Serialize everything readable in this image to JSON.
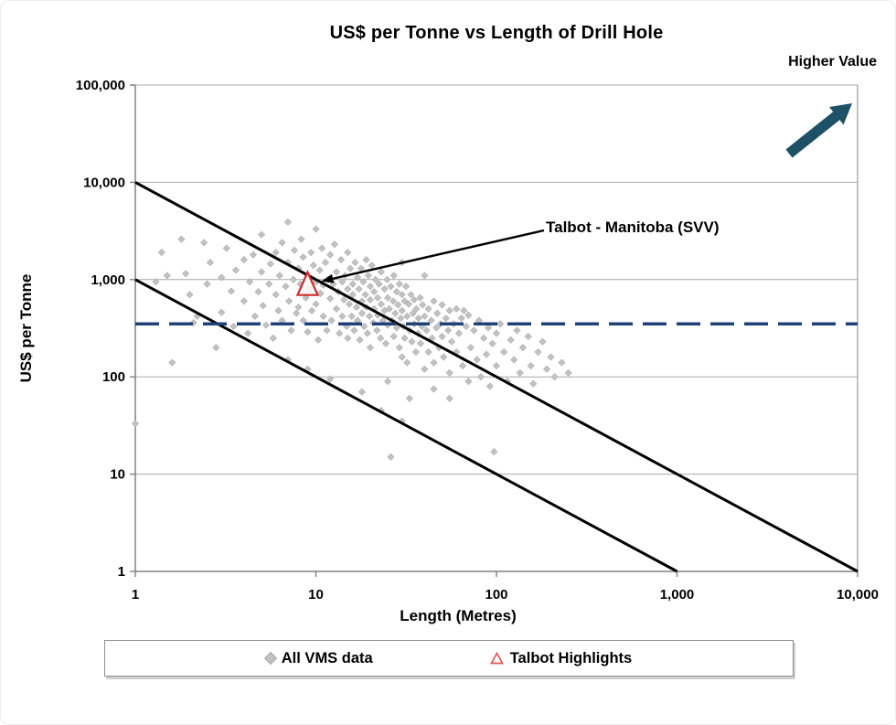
{
  "chart": {
    "title": "US$ per Tonne vs Length of Drill Hole",
    "higher_value_label": "Higher Value",
    "xlabel": "Length (Metres)",
    "ylabel": "US$ per Tonne"
  },
  "legend": {
    "items": [
      {
        "label": "All VMS data",
        "marker": "gray-diamond"
      },
      {
        "label": "Talbot Highlights",
        "marker": "red-open-triangle"
      }
    ]
  },
  "chart_data": {
    "type": "scatter",
    "title": "US$ per Tonne vs Length of Drill Hole",
    "xlabel": "Length (Metres)",
    "ylabel": "US$ per Tonne",
    "x_scale": "log",
    "y_scale": "log",
    "xlim": [
      1,
      10000
    ],
    "ylim": [
      1,
      100000
    ],
    "x_ticks": [
      "1",
      "10",
      "100",
      "1,000",
      "10,000"
    ],
    "x_tick_values": [
      1,
      10,
      100,
      1000,
      10000
    ],
    "y_ticks": [
      "1",
      "10",
      "100",
      "1,000",
      "10,000",
      "100,000"
    ],
    "y_tick_values": [
      1,
      10,
      100,
      1000,
      10000,
      100000
    ],
    "grid": "horizontal-only",
    "legend_position": "bottom",
    "annotation": {
      "text": "Talbot - Manitoba (SVV)",
      "target": [
        9,
        900
      ]
    },
    "colors": {
      "vms_point": "#C2C2C2",
      "vms_point_edge": "#ABABAB",
      "talbot_red": "#CE2B2B",
      "dashed_line": "#1F4177",
      "envelope_line": "#000000",
      "higher_value_arrow": "#1F5166",
      "gridline": "#A8A8A8",
      "axis_line": "#808080"
    },
    "reference_lines": [
      {
        "name": "upper-envelope",
        "type": "diagonal",
        "from": [
          1,
          10000
        ],
        "to": [
          10000,
          1
        ],
        "style": "solid"
      },
      {
        "name": "lower-envelope",
        "type": "diagonal",
        "from": [
          1,
          1000
        ],
        "to": [
          1000,
          1
        ],
        "style": "solid"
      },
      {
        "name": "median-value",
        "type": "horizontal",
        "y": 350,
        "from_x": 1,
        "to_x": 10000,
        "style": "dashed"
      }
    ],
    "series": [
      {
        "name": "All VMS data",
        "marker": "diamond",
        "points": [
          [
            1,
            33
          ],
          [
            1.3,
            950
          ],
          [
            1.4,
            1900
          ],
          [
            1.5,
            1100
          ],
          [
            1.6,
            140
          ],
          [
            1.8,
            2600
          ],
          [
            1.9,
            1150
          ],
          [
            2,
            700
          ],
          [
            2.1,
            360
          ],
          [
            2.2,
            420
          ],
          [
            2.4,
            2400
          ],
          [
            2.5,
            900
          ],
          [
            2.6,
            1500
          ],
          [
            2.8,
            200
          ],
          [
            3,
            1050
          ],
          [
            3,
            460
          ],
          [
            3.2,
            2100
          ],
          [
            3.4,
            760
          ],
          [
            3.5,
            330
          ],
          [
            3.6,
            1250
          ],
          [
            4,
            1600
          ],
          [
            4,
            600
          ],
          [
            4.2,
            280
          ],
          [
            4.3,
            950
          ],
          [
            4.5,
            1800
          ],
          [
            4.6,
            420
          ],
          [
            4.8,
            750
          ],
          [
            5,
            2900
          ],
          [
            5,
            1200
          ],
          [
            5.1,
            540
          ],
          [
            5.3,
            340
          ],
          [
            5.5,
            900
          ],
          [
            5.6,
            1450
          ],
          [
            5.8,
            250
          ],
          [
            6,
            1900
          ],
          [
            6,
            700
          ],
          [
            6.2,
            480
          ],
          [
            6.3,
            1100
          ],
          [
            6.5,
            2400
          ],
          [
            6.5,
            380
          ],
          [
            6.8,
            850
          ],
          [
            7,
            3900
          ],
          [
            7,
            1500
          ],
          [
            7.1,
            600
          ],
          [
            7.3,
            300
          ],
          [
            7.5,
            1000
          ],
          [
            7.6,
            2000
          ],
          [
            7.8,
            450
          ],
          [
            7,
            150
          ],
          [
            8,
            1300
          ],
          [
            8,
            520
          ],
          [
            8.2,
            900
          ],
          [
            8.3,
            2600
          ],
          [
            8.5,
            380
          ],
          [
            8.5,
            1700
          ],
          [
            8.8,
            650
          ],
          [
            9,
            1100
          ],
          [
            9,
            290
          ],
          [
            9.2,
            800
          ],
          [
            9.4,
            1900
          ],
          [
            9.5,
            480
          ],
          [
            9.7,
            1400
          ],
          [
            9,
            120
          ],
          [
            10,
            3300
          ],
          [
            10,
            950
          ],
          [
            10,
            560
          ],
          [
            10.3,
            240
          ],
          [
            10.5,
            1250
          ],
          [
            10.6,
            720
          ],
          [
            10.8,
            2100
          ],
          [
            11,
            880
          ],
          [
            11,
            420
          ],
          [
            11.3,
            1500
          ],
          [
            11.5,
            300
          ],
          [
            11.7,
            1000
          ],
          [
            12,
            1800
          ],
          [
            12,
            640
          ],
          [
            12.2,
            380
          ],
          [
            12.5,
            900
          ],
          [
            12.7,
            2300
          ],
          [
            12,
            95
          ],
          [
            13,
            1200
          ],
          [
            13,
            500
          ],
          [
            13.3,
            750
          ],
          [
            13.5,
            280
          ],
          [
            13.8,
            1600
          ],
          [
            14,
            950
          ],
          [
            14,
            420
          ],
          [
            14.3,
            620
          ],
          [
            14.5,
            1100
          ],
          [
            14.8,
            330
          ],
          [
            15,
            1900
          ],
          [
            15,
            800
          ],
          [
            15,
            250
          ],
          [
            15.3,
            560
          ],
          [
            15.5,
            1300
          ],
          [
            15.8,
            420
          ],
          [
            16,
            900
          ],
          [
            16,
            700
          ],
          [
            16.3,
            300
          ],
          [
            16.5,
            1500
          ],
          [
            16.8,
            520
          ],
          [
            17,
            1050
          ],
          [
            17,
            380
          ],
          [
            17.3,
            800
          ],
          [
            17.5,
            240
          ],
          [
            17.8,
            1300
          ],
          [
            18,
            600
          ],
          [
            18,
            450
          ],
          [
            18.3,
            950
          ],
          [
            18.5,
            330
          ],
          [
            18.8,
            700
          ],
          [
            18,
            70
          ],
          [
            19,
            1600
          ],
          [
            19,
            520
          ],
          [
            19.3,
            280
          ],
          [
            19.5,
            1100
          ],
          [
            19.8,
            420
          ],
          [
            20,
            850
          ],
          [
            20,
            620
          ],
          [
            20,
            200
          ],
          [
            20.4,
            1400
          ],
          [
            20.8,
            360
          ],
          [
            21,
            750
          ],
          [
            21,
            500
          ],
          [
            21.4,
            1000
          ],
          [
            21.8,
            300
          ],
          [
            22,
            650
          ],
          [
            22,
            430
          ],
          [
            22.4,
            900
          ],
          [
            22.8,
            250
          ],
          [
            23,
            1200
          ],
          [
            23,
            560
          ],
          [
            23.5,
            380
          ],
          [
            23,
            45
          ],
          [
            24,
            800
          ],
          [
            24,
            480
          ],
          [
            24.4,
            220
          ],
          [
            24.8,
            1000
          ],
          [
            25,
            650
          ],
          [
            25,
            340
          ],
          [
            25,
            90
          ],
          [
            25.5,
            500
          ],
          [
            26,
            850
          ],
          [
            26,
            15
          ],
          [
            26.4,
            380
          ],
          [
            26.8,
            600
          ],
          [
            27,
            1100
          ],
          [
            27,
            260
          ],
          [
            27.5,
            450
          ],
          [
            28,
            750
          ],
          [
            28,
            320
          ],
          [
            28.5,
            550
          ],
          [
            29,
            900
          ],
          [
            29,
            200
          ],
          [
            29.5,
            400
          ],
          [
            30,
            700
          ],
          [
            30,
            480
          ],
          [
            30,
            160
          ],
          [
            30,
            35
          ],
          [
            30,
            1500
          ],
          [
            30.6,
            330
          ],
          [
            31,
            600
          ],
          [
            31,
            250
          ],
          [
            31.6,
            850
          ],
          [
            32,
            420
          ],
          [
            32,
            140
          ],
          [
            32.7,
            560
          ],
          [
            33,
            300
          ],
          [
            33,
            60
          ],
          [
            33.6,
            700
          ],
          [
            34,
            230
          ],
          [
            34.5,
            450
          ],
          [
            35,
            620
          ],
          [
            35,
            350
          ],
          [
            35.8,
            180
          ],
          [
            36,
            500
          ],
          [
            36.8,
            280
          ],
          [
            37,
            400
          ],
          [
            37.8,
            650
          ],
          [
            38,
            220
          ],
          [
            38.7,
            330
          ],
          [
            39,
            550
          ],
          [
            40,
            420
          ],
          [
            40,
            120
          ],
          [
            40,
            1100
          ],
          [
            41,
            300
          ],
          [
            42,
            500
          ],
          [
            42,
            180
          ],
          [
            43.5,
            380
          ],
          [
            44,
            250
          ],
          [
            45,
            600
          ],
          [
            45,
            140
          ],
          [
            45,
            75
          ],
          [
            46.5,
            320
          ],
          [
            47,
            450
          ],
          [
            48,
            200
          ],
          [
            49,
            350
          ],
          [
            50,
            550
          ],
          [
            50,
            260
          ],
          [
            51,
            160
          ],
          [
            52.5,
            400
          ],
          [
            54,
            300
          ],
          [
            55,
            480
          ],
          [
            55,
            110
          ],
          [
            55,
            60
          ],
          [
            56.5,
            230
          ],
          [
            58,
            350
          ],
          [
            60,
            500
          ],
          [
            60,
            180
          ],
          [
            62,
            280
          ],
          [
            64,
            400
          ],
          [
            65,
            130
          ],
          [
            66,
            480
          ],
          [
            68,
            330
          ],
          [
            70,
            430
          ],
          [
            70,
            90
          ],
          [
            72,
            200
          ],
          [
            75,
            300
          ],
          [
            78,
            150
          ],
          [
            80,
            380
          ],
          [
            82,
            100
          ],
          [
            85,
            250
          ],
          [
            88,
            170
          ],
          [
            90,
            320
          ],
          [
            92,
            80
          ],
          [
            95,
            220
          ],
          [
            97,
            17
          ],
          [
            100,
            280
          ],
          [
            100,
            130
          ],
          [
            105,
            350
          ],
          [
            110,
            180
          ],
          [
            115,
            90
          ],
          [
            120,
            240
          ],
          [
            125,
            150
          ],
          [
            130,
            300
          ],
          [
            135,
            110
          ],
          [
            140,
            200
          ],
          [
            150,
            260
          ],
          [
            155,
            130
          ],
          [
            160,
            85
          ],
          [
            170,
            180
          ],
          [
            180,
            230
          ],
          [
            190,
            120
          ],
          [
            200,
            160
          ],
          [
            210,
            100
          ],
          [
            230,
            140
          ],
          [
            250,
            110
          ]
        ]
      },
      {
        "name": "Talbot Highlights",
        "marker": "open-triangle",
        "points": [
          [
            9,
            900
          ]
        ]
      }
    ]
  }
}
